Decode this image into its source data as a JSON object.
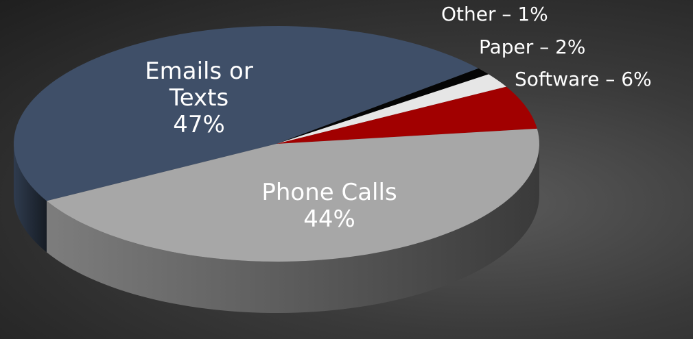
{
  "chart_data": {
    "type": "pie",
    "style": "3d",
    "categories": [
      "Emails or Texts",
      "Other",
      "Paper",
      "Software",
      "Phone Calls"
    ],
    "values": [
      47,
      1,
      2,
      6,
      44
    ],
    "value_labels": [
      "47%",
      "1%",
      "2%",
      "6%",
      "44%"
    ],
    "label_separator": " – ",
    "colors": [
      "#3f4f68",
      "#050505",
      "#e6e6e6",
      "#a10000",
      "#a7a7a7"
    ]
  }
}
